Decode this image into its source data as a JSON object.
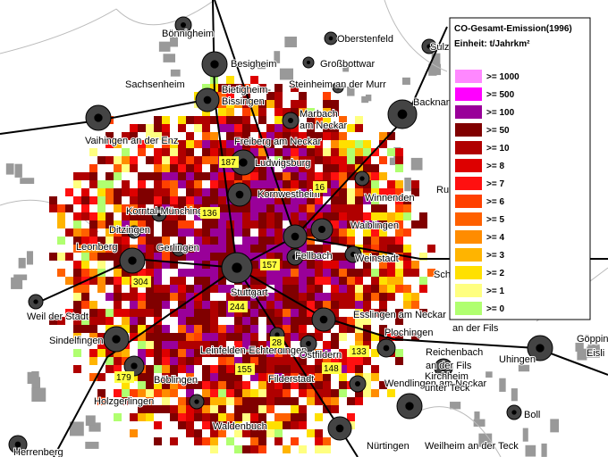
{
  "map": {
    "legend": {
      "title": "CO-Gesamt-Emission(1996)",
      "unit": "Einheit: t/Jahrkm²",
      "items": [
        {
          "label": ">= 1000",
          "color": "#ff88ff"
        },
        {
          "label": ">= 500",
          "color": "#ff00ff"
        },
        {
          "label": ">= 100",
          "color": "#990099"
        },
        {
          "label": ">= 50",
          "color": "#800000"
        },
        {
          "label": ">= 10",
          "color": "#b00000"
        },
        {
          "label": ">= 8",
          "color": "#dd0000"
        },
        {
          "label": ">= 7",
          "color": "#ff1010"
        },
        {
          "label": ">= 6",
          "color": "#ff4000"
        },
        {
          "label": ">= 5",
          "color": "#ff6000"
        },
        {
          "label": ">= 4",
          "color": "#ff8c00"
        },
        {
          "label": ">= 3",
          "color": "#ffb400"
        },
        {
          "label": ">= 2",
          "color": "#ffe000"
        },
        {
          "label": ">= 1",
          "color": "#ffff80"
        },
        {
          "label": ">= 0",
          "color": "#b0ff70"
        }
      ]
    },
    "values": [
      187,
      16,
      136,
      157,
      304,
      244,
      28,
      133,
      179,
      155,
      148
    ],
    "places": [
      "Bönnigheim",
      "Oberstenfeld",
      "Sulz",
      "Besigheim",
      "Großbottwar",
      "Sachsenheim",
      "Bietigheim-",
      "Bissingen",
      "Steinheim an der Murr",
      "Backnang",
      "Marbach",
      "am Neckar",
      "Vaihingen an der Enz",
      "Freiberg am Neckar",
      "Ludwigsburg",
      "Kornwestheim",
      "Winnenden",
      "Ru",
      "Korntal-Münchingen",
      "Ditzingen",
      "Waiblingen",
      "Leonberg",
      "Gerlingen",
      "Fellbach",
      "Weinstadt",
      "Sch",
      "Stuttgart",
      "Esslingen am Neckar",
      "Weil der Stadt",
      "Sindelfingen",
      "an der Fils",
      "Göppingen",
      "Leinfelden-Echterdingen",
      "Ostfildern",
      "Plochingen",
      "Reichenbach",
      "an der Fils",
      "Uhingen",
      "Eisli",
      "Böblingen",
      "Filderstadt",
      "Wendlingen am Neckar",
      "Kirchheim",
      "unter Teck",
      "Holzgerlingen",
      "Boll",
      "Waldenbuch",
      "Nürtingen",
      "Weilheim an der Teck",
      "Herrenberg"
    ]
  }
}
